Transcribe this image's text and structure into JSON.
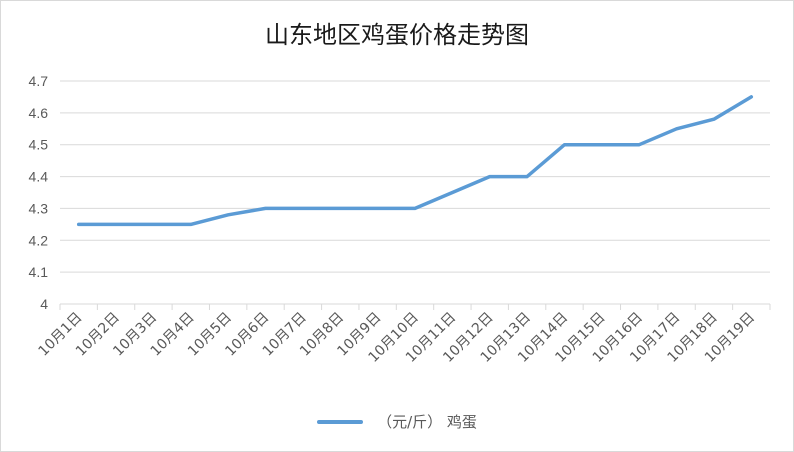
{
  "chart_data": {
    "type": "line",
    "title": "山东地区鸡蛋价格走势图",
    "categories": [
      "10月1日",
      "10月2日",
      "10月3日",
      "10月4日",
      "10月5日",
      "10月6日",
      "10月7日",
      "10月8日",
      "10月9日",
      "10月10日",
      "10月11日",
      "10月12日",
      "10月13日",
      "10月14日",
      "10月15日",
      "10月16日",
      "10月17日",
      "10月18日",
      "10月19日"
    ],
    "series": [
      {
        "name": "（元/斤） 鸡蛋",
        "values": [
          4.25,
          4.25,
          4.25,
          4.25,
          4.28,
          4.3,
          4.3,
          4.3,
          4.3,
          4.3,
          4.35,
          4.4,
          4.4,
          4.5,
          4.5,
          4.5,
          4.55,
          4.58,
          4.65
        ]
      }
    ],
    "ylim": [
      4,
      4.7
    ],
    "yticks": [
      "4",
      "4.1",
      "4.2",
      "4.3",
      "4.4",
      "4.5",
      "4.6",
      "4.7"
    ],
    "grid": true,
    "legend_position": "bottom",
    "colors": {
      "line": "#5b9bd5",
      "grid": "#d9d9d9",
      "axis_text": "#595959"
    }
  }
}
